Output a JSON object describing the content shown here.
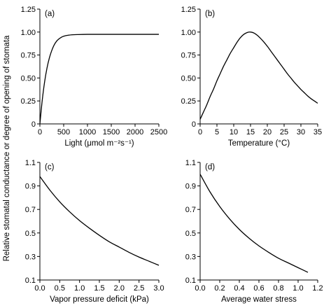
{
  "figure": {
    "shared_ylabel": "Relative stomatal conductance  or degree of opening of stomata"
  },
  "chart_data": [
    {
      "type": "line",
      "panel_label": "(a)",
      "xlabel": "Light (μmol m⁻²s⁻¹)",
      "ylabel": "",
      "xlim": [
        0,
        2500
      ],
      "ylim": [
        0,
        1.25
      ],
      "xticks": [
        0,
        500,
        1000,
        1500,
        2000,
        2500
      ],
      "yticks": [
        0,
        0.25,
        0.5,
        0.75,
        1.0,
        1.25
      ],
      "xtick_labels": [
        "0",
        "500",
        "1000",
        "1500",
        "2000",
        "2500"
      ],
      "ytick_labels": [
        "0",
        "0.25",
        "0.50",
        "0.75",
        "1.00",
        "1.25"
      ],
      "series": [
        {
          "x": [
            0,
            50,
            100,
            150,
            200,
            250,
            300,
            350,
            400,
            450,
            500,
            600,
            700,
            800,
            1000,
            1200,
            1500,
            2000,
            2500
          ],
          "y": [
            0,
            0.26,
            0.46,
            0.61,
            0.72,
            0.8,
            0.86,
            0.9,
            0.925,
            0.943,
            0.955,
            0.966,
            0.971,
            0.973,
            0.975,
            0.975,
            0.975,
            0.975,
            0.975
          ]
        }
      ]
    },
    {
      "type": "line",
      "panel_label": "(b)",
      "xlabel": "Temperature (°C)",
      "ylabel": "",
      "xlim": [
        0,
        35
      ],
      "ylim": [
        0,
        1.25
      ],
      "xticks": [
        0,
        5,
        10,
        15,
        20,
        25,
        30,
        35
      ],
      "yticks": [
        0,
        0.25,
        0.5,
        0.75,
        1.0,
        1.25
      ],
      "xtick_labels": [
        "0",
        "5",
        "10",
        "15",
        "20",
        "25",
        "30",
        "35"
      ],
      "ytick_labels": [
        "0",
        "0.25",
        "0.50",
        "0.75",
        "1.00",
        "1.25"
      ],
      "series": [
        {
          "x": [
            0,
            1,
            2,
            3,
            4,
            5,
            6,
            7,
            8,
            9,
            10,
            11,
            12,
            13,
            14,
            15,
            16,
            17,
            18,
            19,
            20,
            21,
            22,
            23,
            24,
            25,
            26,
            27,
            28,
            29,
            30,
            31,
            32,
            33,
            34,
            35
          ],
          "y": [
            0.05,
            0.13,
            0.21,
            0.3,
            0.38,
            0.47,
            0.55,
            0.63,
            0.7,
            0.77,
            0.83,
            0.89,
            0.94,
            0.975,
            0.995,
            1.0,
            0.99,
            0.965,
            0.93,
            0.89,
            0.845,
            0.795,
            0.745,
            0.695,
            0.645,
            0.595,
            0.545,
            0.5,
            0.455,
            0.415,
            0.375,
            0.34,
            0.305,
            0.275,
            0.25,
            0.225
          ]
        }
      ]
    },
    {
      "type": "line",
      "panel_label": "(c)",
      "xlabel": "Vapor pressure deficit (kPa)",
      "ylabel": "",
      "xlim": [
        0,
        3
      ],
      "ylim": [
        0.1,
        1.1
      ],
      "xticks": [
        0,
        0.5,
        1.0,
        1.5,
        2.0,
        2.5,
        3.0
      ],
      "yticks": [
        0.1,
        0.3,
        0.5,
        0.7,
        0.9,
        1.1
      ],
      "xtick_labels": [
        "0.0",
        "0.5",
        "1.0",
        "1.5",
        "2.0",
        "2.5",
        "3.0"
      ],
      "ytick_labels": [
        "0.1",
        "0.3",
        "0.5",
        "0.7",
        "0.9",
        "1.1"
      ],
      "series": [
        {
          "x": [
            0,
            0.25,
            0.5,
            0.75,
            1.0,
            1.25,
            1.5,
            1.75,
            2.0,
            2.25,
            2.5,
            2.75,
            3.0
          ],
          "y": [
            0.98,
            0.865,
            0.765,
            0.68,
            0.605,
            0.54,
            0.48,
            0.425,
            0.38,
            0.335,
            0.295,
            0.26,
            0.225
          ]
        }
      ]
    },
    {
      "type": "line",
      "panel_label": "(d)",
      "xlabel": "Average water stress",
      "ylabel": "",
      "xlim": [
        0,
        1.2
      ],
      "ylim": [
        0.1,
        1.1
      ],
      "xticks": [
        0,
        0.2,
        0.4,
        0.6,
        0.8,
        1.0,
        1.2
      ],
      "yticks": [
        0.1,
        0.3,
        0.5,
        0.7,
        0.9,
        1.1
      ],
      "xtick_labels": [
        "0.0",
        "0.2",
        "0.4",
        "0.6",
        "0.8",
        "1.0",
        "1.2"
      ],
      "ytick_labels": [
        "0.1",
        "0.3",
        "0.5",
        "0.7",
        "0.9",
        "1.1"
      ],
      "series": [
        {
          "x": [
            0,
            0.1,
            0.2,
            0.3,
            0.4,
            0.5,
            0.6,
            0.7,
            0.8,
            0.9,
            1.0,
            1.1
          ],
          "y": [
            1.0,
            0.85,
            0.725,
            0.62,
            0.53,
            0.455,
            0.39,
            0.335,
            0.285,
            0.245,
            0.205,
            0.165
          ]
        }
      ]
    }
  ]
}
